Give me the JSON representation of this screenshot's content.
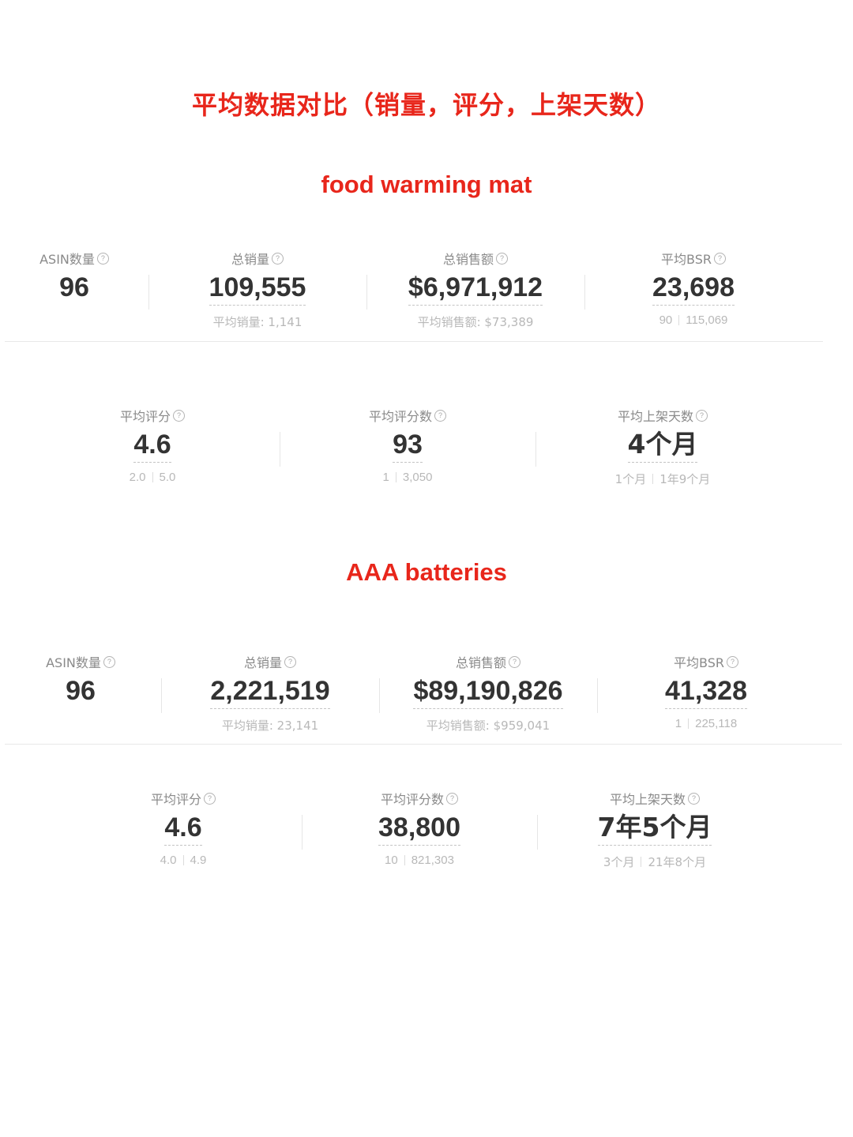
{
  "page_title": "平均数据对比（销量，评分，上架天数）",
  "sections": [
    {
      "title": "food warming mat",
      "row1": [
        {
          "label": "ASIN数量",
          "value": "96",
          "sub_text": ""
        },
        {
          "label": "总销量",
          "value": "109,555",
          "sub_text": "平均销量: 1,141"
        },
        {
          "label": "总销售额",
          "value": "$6,971,912",
          "sub_text": "平均销售额: $73,389"
        },
        {
          "label": "平均BSR",
          "value": "23,698",
          "sub_min": "90",
          "sub_max": "115,069"
        }
      ],
      "row2": [
        {
          "label": "平均评分",
          "value": "4.6",
          "sub_min": "2.0",
          "sub_max": "5.0"
        },
        {
          "label": "平均评分数",
          "value": "93",
          "sub_min": "1",
          "sub_max": "3,050"
        },
        {
          "label": "平均上架天数",
          "value": "4个月",
          "sub_min": "1个月",
          "sub_max": "1年9个月"
        }
      ]
    },
    {
      "title": "AAA batteries",
      "row1": [
        {
          "label": "ASIN数量",
          "value": "96",
          "sub_text": ""
        },
        {
          "label": "总销量",
          "value": "2,221,519",
          "sub_text": "平均销量: 23,141"
        },
        {
          "label": "总销售额",
          "value": "$89,190,826",
          "sub_text": "平均销售额: $959,041"
        },
        {
          "label": "平均BSR",
          "value": "41,328",
          "sub_min": "1",
          "sub_max": "225,118"
        }
      ],
      "row2": [
        {
          "label": "平均评分",
          "value": "4.6",
          "sub_min": "4.0",
          "sub_max": "4.9"
        },
        {
          "label": "平均评分数",
          "value": "38,800",
          "sub_min": "10",
          "sub_max": "821,303"
        },
        {
          "label": "平均上架天数",
          "value": "7年5个月",
          "sub_min": "3个月",
          "sub_max": "21年8个月"
        }
      ]
    }
  ],
  "help_icon_glyph": "?"
}
